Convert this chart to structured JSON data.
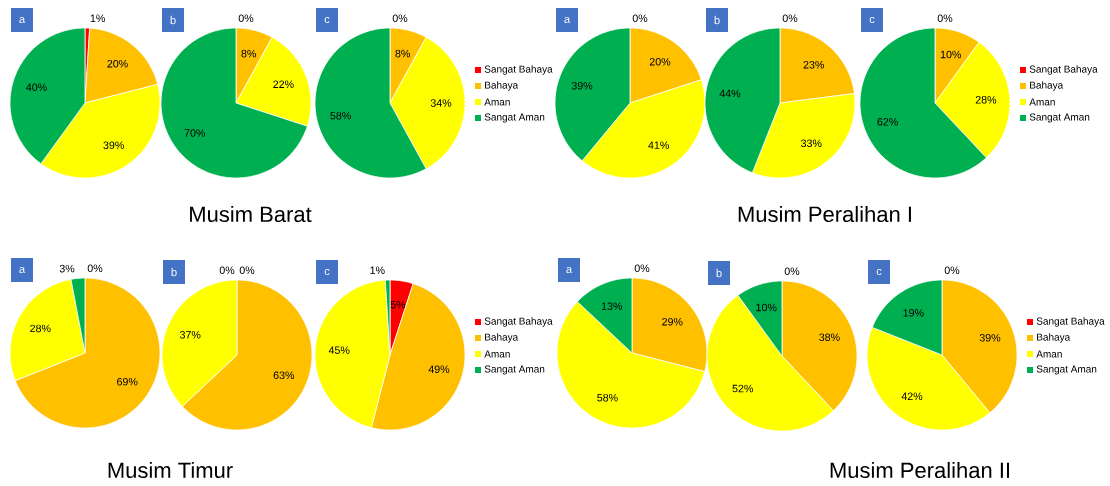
{
  "chart_data": [
    {
      "type": "pie",
      "title": "a",
      "categories": [
        null,
        null,
        null,
        null
      ],
      "values": [
        1,
        20,
        39,
        40
      ],
      "colors": [
        "#ff0000",
        "#ffc000",
        "#ffff00",
        "#00b050"
      ],
      "value_labels": [
        "1%",
        "20%",
        "39%",
        "40%"
      ]
    },
    {
      "type": "pie",
      "title": "b",
      "categories": [
        null,
        null,
        null,
        null
      ],
      "values": [
        0,
        8,
        22,
        70
      ],
      "colors": [
        "#ff0000",
        "#ffc000",
        "#ffff00",
        "#00b050"
      ],
      "value_labels": [
        "0%",
        "8%",
        "22%",
        "70%"
      ],
      "annotations": [
        "Musim Barat"
      ]
    },
    {
      "type": "pie",
      "title": "c",
      "categories": [
        "Sangat Bahaya",
        "Bahaya",
        "Aman",
        "Sangat Aman"
      ],
      "values": [
        0,
        8,
        34,
        58
      ],
      "colors": [
        "#ff0000",
        "#ffc000",
        "#ffff00",
        "#00b050"
      ],
      "value_labels": [
        "0%",
        "8%",
        "34%",
        "58%"
      ],
      "legend": "right"
    },
    {
      "type": "pie",
      "title": "a",
      "categories": [
        null,
        null,
        null,
        null
      ],
      "values": [
        0,
        20,
        41,
        39
      ],
      "colors": [
        "#ff0000",
        "#ffc000",
        "#ffff00",
        "#00b050"
      ],
      "value_labels": [
        "0%",
        "20%",
        "41%",
        "39%"
      ]
    },
    {
      "type": "pie",
      "title": "b",
      "categories": [
        null,
        null,
        null,
        null
      ],
      "values": [
        0,
        23,
        33,
        44
      ],
      "colors": [
        "#ff0000",
        "#ffc000",
        "#ffff00",
        "#00b050"
      ],
      "value_labels": [
        "0%",
        "23%",
        "33%",
        "44%"
      ],
      "annotations": [
        "Musim Peralihan I"
      ]
    },
    {
      "type": "pie",
      "title": "c",
      "categories": [
        "Sangat Bahaya",
        "Bahaya",
        "Aman",
        "Sangat Aman"
      ],
      "values": [
        0,
        10,
        28,
        62
      ],
      "colors": [
        "#ff0000",
        "#ffc000",
        "#ffff00",
        "#00b050"
      ],
      "value_labels": [
        "0%",
        "10%",
        "28%",
        "62%"
      ],
      "legend": "right"
    },
    {
      "type": "pie",
      "title": "a",
      "categories": [
        null,
        null,
        null,
        null
      ],
      "values": [
        0,
        69,
        28,
        3
      ],
      "colors": [
        "#ff0000",
        "#ffc000",
        "#ffff00",
        "#00b050"
      ],
      "value_labels": [
        "0%",
        "69%",
        "28%",
        "3%"
      ]
    },
    {
      "type": "pie",
      "title": "b",
      "categories": [
        null,
        null,
        null,
        null
      ],
      "values": [
        0,
        63,
        37,
        0
      ],
      "colors": [
        "#ff0000",
        "#ffc000",
        "#ffff00",
        "#00b050"
      ],
      "value_labels": [
        "0%",
        "63%",
        "37%",
        "0%"
      ],
      "annotations": [
        "Musim Timur"
      ]
    },
    {
      "type": "pie",
      "title": "c",
      "categories": [
        "Sangat Bahaya",
        "Bahaya",
        "Aman",
        "Sangat Aman"
      ],
      "values": [
        5,
        49,
        45,
        1
      ],
      "colors": [
        "#ff0000",
        "#ffc000",
        "#ffff00",
        "#00b050"
      ],
      "value_labels": [
        "5%",
        "49%",
        "45%",
        "1%"
      ],
      "legend": "right"
    },
    {
      "type": "pie",
      "title": "a",
      "categories": [
        null,
        null,
        null,
        null
      ],
      "values": [
        0,
        29,
        58,
        13
      ],
      "colors": [
        "#ff0000",
        "#ffc000",
        "#ffff00",
        "#00b050"
      ],
      "value_labels": [
        "0%",
        "29%",
        "58%",
        "13%"
      ]
    },
    {
      "type": "pie",
      "title": "b",
      "categories": [
        null,
        null,
        null,
        null
      ],
      "values": [
        0,
        38,
        52,
        10
      ],
      "colors": [
        "#ff0000",
        "#ffc000",
        "#ffff00",
        "#00b050"
      ],
      "value_labels": [
        "0%",
        "38%",
        "52%",
        "10%"
      ],
      "annotations": [
        "Musim Peralihan II"
      ]
    },
    {
      "type": "pie",
      "title": "c",
      "categories": [
        "Sangat Bahaya",
        "Bahaya",
        "Aman",
        "Sangat Aman"
      ],
      "values": [
        0,
        39,
        42,
        19
      ],
      "colors": [
        "#ff0000",
        "#ffc000",
        "#ffff00",
        "#00b050"
      ],
      "value_labels": [
        "0%",
        "39%",
        "42%",
        "19%"
      ],
      "legend": "right"
    }
  ]
}
